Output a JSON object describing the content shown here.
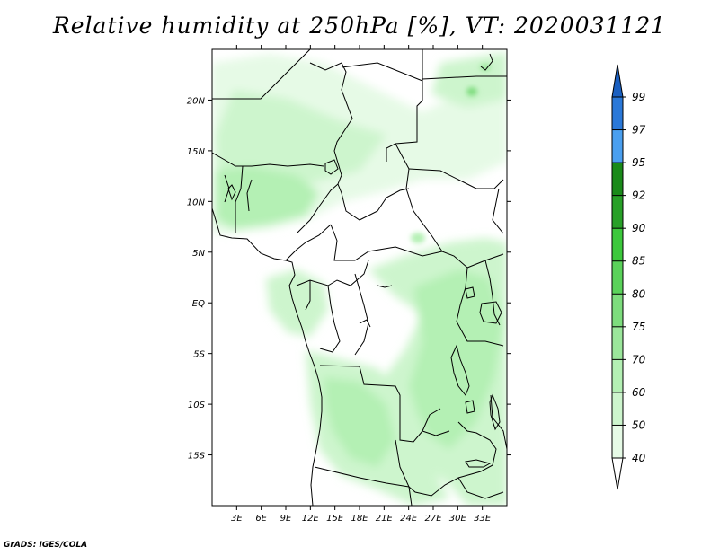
{
  "title": "Relative humidity at 250hPa [%], VT: 2020031121",
  "credit": "GrADS: IGES/COLA",
  "map": {
    "lon_range": [
      0,
      36
    ],
    "lat_range": [
      -20,
      25
    ],
    "lat_labels": [
      "20N",
      "15N",
      "10N",
      "5N",
      "EQ",
      "5S",
      "10S",
      "15S"
    ],
    "lon_labels": [
      "3E",
      "6E",
      "9E",
      "12E",
      "15E",
      "18E",
      "21E",
      "24E",
      "27E",
      "30E",
      "33E"
    ]
  },
  "colorbar": {
    "levels": [
      "40",
      "50",
      "60",
      "70",
      "75",
      "80",
      "85",
      "90",
      "92",
      "95",
      "97",
      "99"
    ],
    "colors": [
      "#ffffff",
      "#e6fae6",
      "#cdf5cd",
      "#b4f0b4",
      "#9be69b",
      "#7ddc7d",
      "#5ad25a",
      "#3cc83c",
      "#28a028",
      "#1a8a1a",
      "#4a9fef",
      "#2a78d8",
      "#1a5fc0"
    ]
  }
}
